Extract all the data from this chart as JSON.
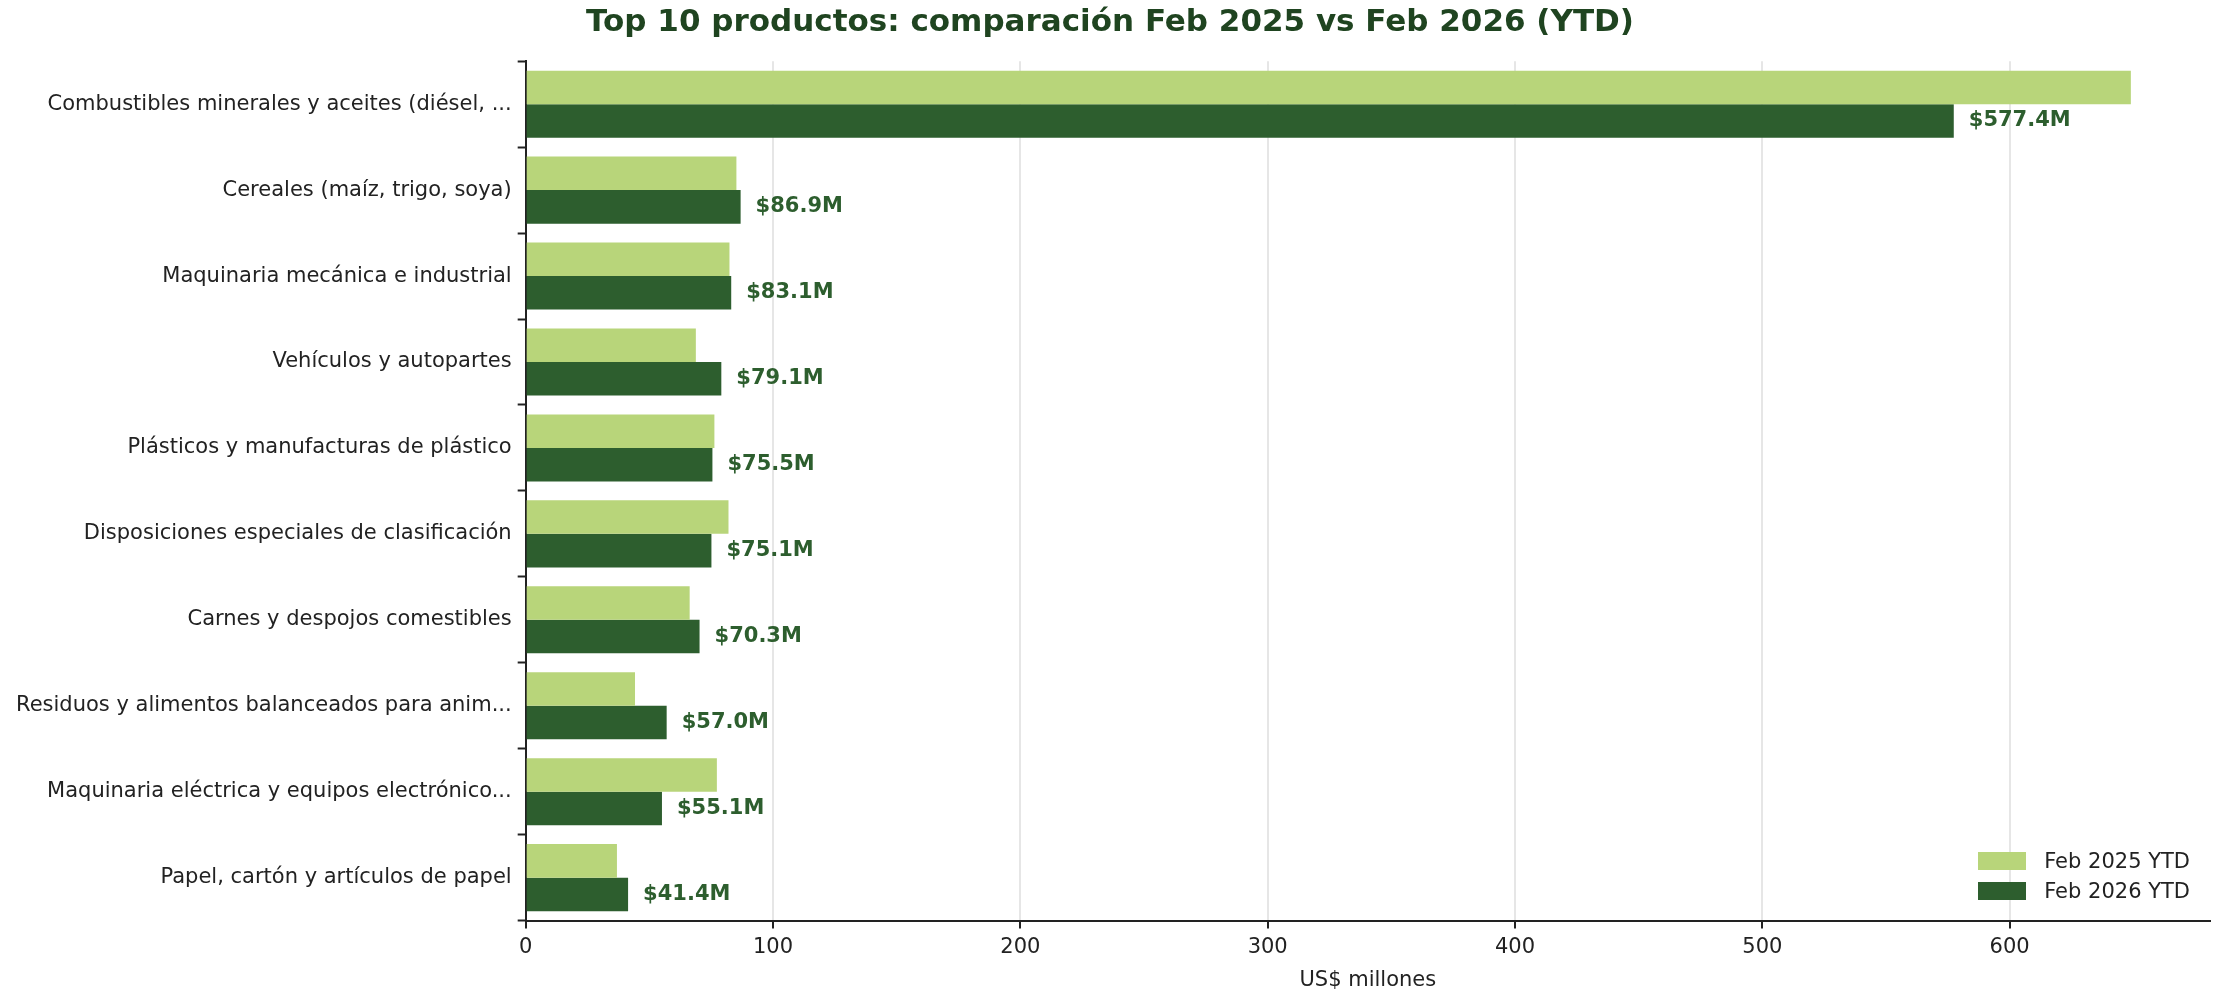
{
  "chart_data": {
    "type": "bar",
    "orientation": "horizontal",
    "title": "Top 10 productos: comparación Feb 2025 vs Feb 2026 (YTD)",
    "xlabel": "US$ millones",
    "categories": [
      "Combustibles minerales y aceites (diésel, ...",
      "Cereales (maíz, trigo, soya)",
      "Maquinaria mecánica e industrial",
      "Vehículos y autopartes",
      "Plásticos y manufacturas de plástico",
      "Disposiciones especiales de clasificación",
      "Carnes y despojos comestibles",
      "Residuos y alimentos balanceados para anim...",
      "Maquinaria eléctrica y equipos electrónico...",
      "Papel, cartón y artículos de papel"
    ],
    "series": [
      {
        "name": "Feb 2025 YTD",
        "color": "#b8d57a",
        "values": [
          649,
          85.2,
          82.4,
          68.8,
          76.3,
          82.0,
          66.3,
          44.2,
          77.3,
          36.9
        ]
      },
      {
        "name": "Feb 2026 YTD",
        "color": "#2d5e2e",
        "values": [
          577.4,
          86.9,
          83.1,
          79.1,
          75.5,
          75.1,
          70.3,
          57.0,
          55.1,
          41.4
        ],
        "value_labels": [
          "$577.4M",
          "$86.9M",
          "$83.1M",
          "$79.1M",
          "$75.5M",
          "$75.1M",
          "$70.3M",
          "$57.0M",
          "$55.1M",
          "$41.4M"
        ]
      }
    ],
    "xlim": [
      0,
      681
    ],
    "xticks": [
      0,
      100,
      200,
      300,
      400,
      500,
      600
    ],
    "grid": "x",
    "legend": "bottom right"
  }
}
